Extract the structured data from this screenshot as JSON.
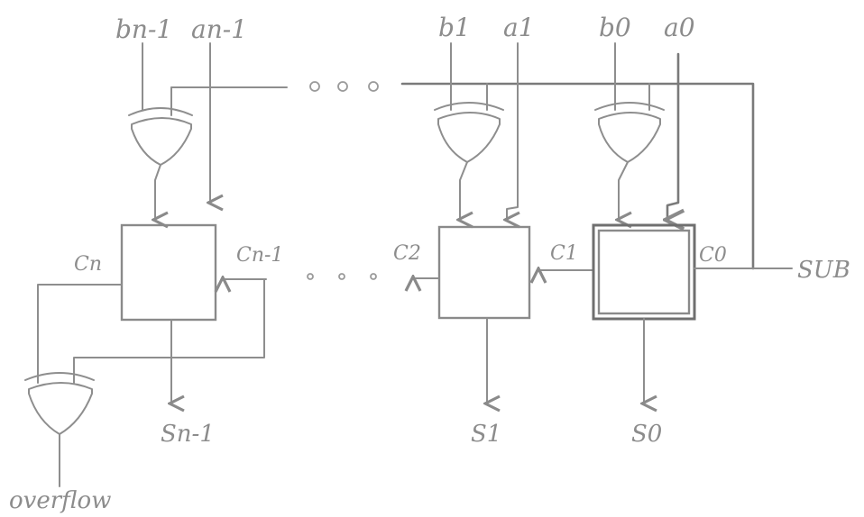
{
  "inputs": {
    "b_n1": "bn-1",
    "a_n1": "an-1",
    "b1": "b1",
    "a1": "a1",
    "b0": "b0",
    "a0": "a0"
  },
  "carries": {
    "c_n": "Cn",
    "c_n1": "Cn-1",
    "c2": "C2",
    "c1": "C1",
    "c0": "C0"
  },
  "control": {
    "sub": "SUB"
  },
  "outputs": {
    "s_n1": "Sn-1",
    "s1": "S1",
    "s0": "S0",
    "overflow": "overflow"
  },
  "ellipsis": {
    "top": "o o o",
    "middle": "o o o"
  },
  "colors": {
    "ink": "#8e8e8e",
    "background": "#ffffff"
  }
}
